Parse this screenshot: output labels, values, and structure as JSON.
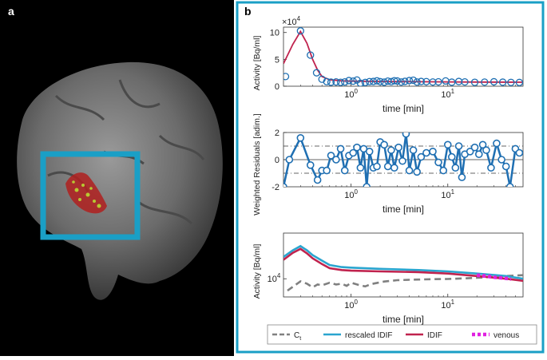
{
  "figure": {
    "panel_a_label": "a",
    "panel_b_label": "b",
    "brain_bg": "#000000",
    "roi_box_color": "#1a9fc6",
    "panel_b_border_color": "#1a9fc6"
  },
  "chart_data": [
    {
      "type": "scatter",
      "subtype": "line-with-points",
      "xscale": "log",
      "xlim": [
        0.2,
        60
      ],
      "ylim": [
        0,
        110000
      ],
      "xlabel": "time [min]",
      "ylabel": "Activity [Bq/ml]",
      "xtick_labels": [
        "10^0",
        "10^1"
      ],
      "ytick_labels": [
        "0",
        "5",
        "10"
      ],
      "y_exponent": "×10^4",
      "series": [
        {
          "role": "fit",
          "color": "#c0234e",
          "points": [
            [
              0.2,
              42000
            ],
            [
              0.25,
              78000
            ],
            [
              0.3,
              102000
            ],
            [
              0.35,
              80000
            ],
            [
              0.4,
              50000
            ],
            [
              0.45,
              30000
            ],
            [
              0.5,
              18000
            ],
            [
              0.6,
              12000
            ],
            [
              0.8,
              10000
            ],
            [
              1,
              9500
            ],
            [
              2,
              8800
            ],
            [
              5,
              8300
            ],
            [
              10,
              8000
            ],
            [
              20,
              7800
            ],
            [
              60,
              7500
            ]
          ]
        },
        {
          "role": "measured",
          "color": "#1f6fb2",
          "points": [
            [
              0.21,
              18000
            ],
            [
              0.3,
              103000
            ],
            [
              0.38,
              58000
            ],
            [
              0.44,
              25000
            ],
            [
              0.5,
              13000
            ],
            [
              0.56,
              8500
            ],
            [
              0.62,
              7500
            ],
            [
              0.7,
              8000
            ],
            [
              0.78,
              7200
            ],
            [
              0.86,
              8000
            ],
            [
              0.95,
              10500
            ],
            [
              1.05,
              9500
            ],
            [
              1.15,
              11500
            ],
            [
              1.25,
              5500
            ],
            [
              1.4,
              7000
            ],
            [
              1.55,
              8500
            ],
            [
              1.7,
              8800
            ],
            [
              1.85,
              10000
            ],
            [
              2.0,
              8500
            ],
            [
              2.2,
              7500
            ],
            [
              2.4,
              9500
            ],
            [
              2.6,
              8500
            ],
            [
              2.8,
              10200
            ],
            [
              3.0,
              9800
            ],
            [
              3.3,
              7800
            ],
            [
              3.6,
              9000
            ],
            [
              4.0,
              10500
            ],
            [
              4.4,
              11200
            ],
            [
              4.8,
              7800
            ],
            [
              5.3,
              8800
            ],
            [
              6.0,
              8500
            ],
            [
              7.0,
              7800
            ],
            [
              8.0,
              8200
            ],
            [
              9.5,
              9800
            ],
            [
              11,
              7500
            ],
            [
              13,
              8800
            ],
            [
              15,
              8000
            ],
            [
              19,
              7300
            ],
            [
              24,
              7600
            ],
            [
              30,
              8300
            ],
            [
              37,
              7500
            ],
            [
              45,
              7100
            ],
            [
              55,
              7000
            ]
          ]
        }
      ]
    },
    {
      "type": "line",
      "subtype": "weighted-residuals",
      "xscale": "log",
      "xlim": [
        0.2,
        60
      ],
      "ylim": [
        -2,
        2
      ],
      "xlabel": "time [min]",
      "ylabel": "Weighted Residuals [adim.]",
      "xtick_labels": [
        "10^0",
        "10^1"
      ],
      "ytick_labels": [
        "-2",
        "0",
        "2"
      ],
      "reference_lines": [
        1,
        0,
        -1
      ],
      "series": [
        {
          "color": "#1f6fb2",
          "points": [
            [
              0.2,
              -2
            ],
            [
              0.23,
              0
            ],
            [
              0.3,
              1.6
            ],
            [
              0.38,
              -0.4
            ],
            [
              0.45,
              -1.5
            ],
            [
              0.5,
              -0.8
            ],
            [
              0.56,
              -0.8
            ],
            [
              0.62,
              0.3
            ],
            [
              0.7,
              0
            ],
            [
              0.78,
              0.8
            ],
            [
              0.86,
              -0.8
            ],
            [
              0.95,
              0.3
            ],
            [
              1.05,
              0.5
            ],
            [
              1.15,
              0.9
            ],
            [
              1.25,
              -0.6
            ],
            [
              1.35,
              0.8
            ],
            [
              1.45,
              -2
            ],
            [
              1.55,
              0.6
            ],
            [
              1.7,
              -0.6
            ],
            [
              1.85,
              -0.5
            ],
            [
              2.0,
              1.3
            ],
            [
              2.2,
              1.1
            ],
            [
              2.4,
              -0.5
            ],
            [
              2.6,
              0.7
            ],
            [
              2.8,
              -0.6
            ],
            [
              3.1,
              0.9
            ],
            [
              3.4,
              -0.1
            ],
            [
              3.7,
              1.9
            ],
            [
              4.0,
              -0.8
            ],
            [
              4.4,
              0.7
            ],
            [
              4.8,
              -0.9
            ],
            [
              5.3,
              0.2
            ],
            [
              6.0,
              0.5
            ],
            [
              7.0,
              0.6
            ],
            [
              8.0,
              -0.2
            ],
            [
              9.0,
              -0.8
            ],
            [
              10,
              1.1
            ],
            [
              11,
              0.2
            ],
            [
              12,
              -0.6
            ],
            [
              13,
              1
            ],
            [
              14,
              -1.3
            ],
            [
              15,
              0.4
            ],
            [
              17,
              0.6
            ],
            [
              19,
              0.9
            ],
            [
              21,
              0.4
            ],
            [
              23,
              1.1
            ],
            [
              25,
              0.7
            ],
            [
              28,
              -0.6
            ],
            [
              32,
              1.2
            ],
            [
              36,
              0
            ],
            [
              40,
              -0.5
            ],
            [
              44,
              -2
            ],
            [
              50,
              0.8
            ],
            [
              55,
              0.5
            ]
          ]
        }
      ]
    },
    {
      "type": "line",
      "xscale": "log",
      "yscale": "log",
      "xlim": [
        0.2,
        60
      ],
      "ylim": [
        4000,
        100000
      ],
      "xlabel": "time [min]",
      "ylabel": "Activity [Bq/ml]",
      "xtick_labels": [
        "10^0",
        "10^1"
      ],
      "ytick_labels": [
        "10^4"
      ],
      "legend_position": "bottom",
      "series": [
        {
          "name": "C_t",
          "color": "#808080",
          "style": "dashed",
          "points": [
            [
              0.22,
              5500
            ],
            [
              0.3,
              8800
            ],
            [
              0.35,
              7800
            ],
            [
              0.4,
              6500
            ],
            [
              0.45,
              7500
            ],
            [
              0.5,
              7200
            ],
            [
              0.6,
              8200
            ],
            [
              0.7,
              7500
            ],
            [
              0.8,
              7800
            ],
            [
              0.9,
              7000
            ],
            [
              1.0,
              8200
            ],
            [
              1.2,
              7300
            ],
            [
              1.4,
              6800
            ],
            [
              1.6,
              7600
            ],
            [
              1.9,
              8200
            ],
            [
              2.2,
              8700
            ],
            [
              2.6,
              9000
            ],
            [
              3,
              9300
            ],
            [
              4,
              9500
            ],
            [
              5,
              9600
            ],
            [
              7,
              9800
            ],
            [
              10,
              9900
            ],
            [
              15,
              10200
            ],
            [
              20,
              10500
            ],
            [
              30,
              11000
            ],
            [
              40,
              11500
            ],
            [
              60,
              12000
            ]
          ]
        },
        {
          "name": "rescaled IDIF",
          "color": "#2aa5cf",
          "style": "solid",
          "points": [
            [
              0.2,
              30000
            ],
            [
              0.25,
              42000
            ],
            [
              0.3,
              52000
            ],
            [
              0.35,
              42000
            ],
            [
              0.4,
              33000
            ],
            [
              0.5,
              25000
            ],
            [
              0.6,
              20000
            ],
            [
              0.8,
              18000
            ],
            [
              1,
              17500
            ],
            [
              2,
              16500
            ],
            [
              5,
              15500
            ],
            [
              10,
              14500
            ],
            [
              20,
              13000
            ],
            [
              40,
              11500
            ],
            [
              60,
              10000
            ]
          ]
        },
        {
          "name": "IDIF",
          "color": "#c0234e",
          "style": "solid",
          "points": [
            [
              0.2,
              26000
            ],
            [
              0.25,
              37000
            ],
            [
              0.3,
              45000
            ],
            [
              0.35,
              36000
            ],
            [
              0.4,
              28000
            ],
            [
              0.5,
              21000
            ],
            [
              0.6,
              17000
            ],
            [
              0.8,
              15500
            ],
            [
              1,
              15000
            ],
            [
              2,
              14500
            ],
            [
              5,
              14000
            ],
            [
              10,
              13000
            ],
            [
              20,
              11500
            ],
            [
              40,
              10000
            ],
            [
              60,
              9000
            ]
          ]
        },
        {
          "name": "venous",
          "color": "#e020e0",
          "style": "dotted",
          "points": [
            [
              20,
              12000
            ],
            [
              25,
              11500
            ],
            [
              30,
              10800
            ],
            [
              35,
              10500
            ],
            [
              40,
              10200
            ],
            [
              45,
              9800
            ]
          ]
        }
      ]
    }
  ]
}
